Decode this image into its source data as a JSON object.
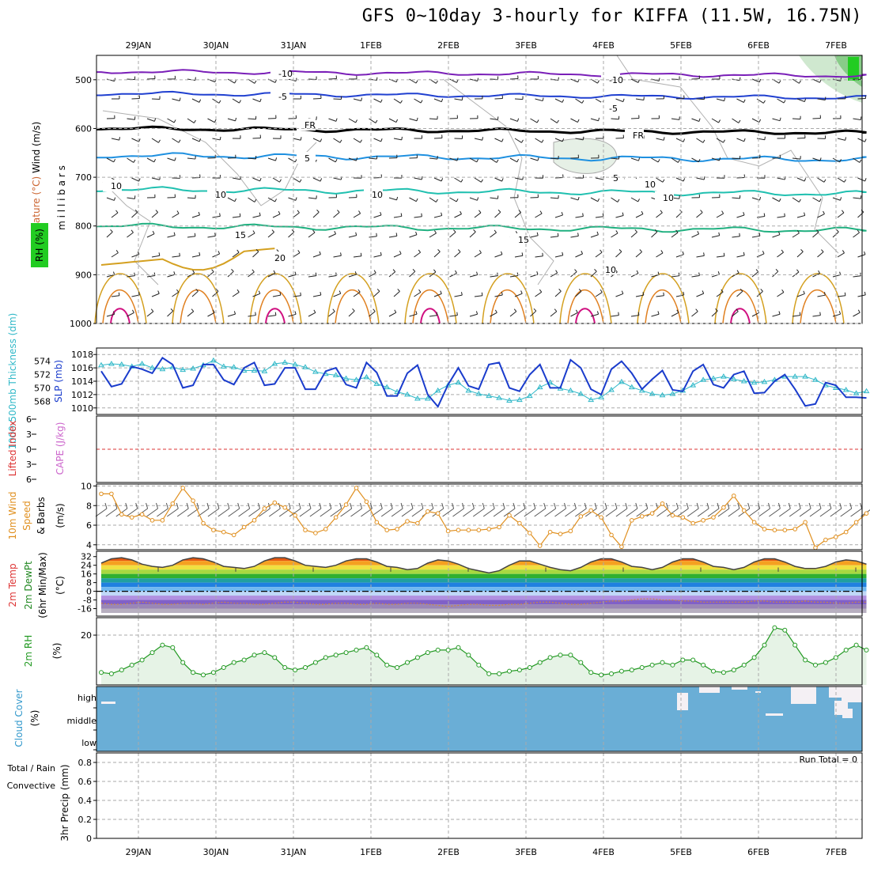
{
  "title": "GFS 0~10day 3-hourly for KIFFA (11.5W, 16.75N)",
  "dates": [
    "29JAN",
    "30JAN",
    "31JAN",
    "1FEB",
    "2FEB",
    "3FEB",
    "4FEB",
    "5FEB",
    "6FEB",
    "7FEB"
  ],
  "colors": {
    "grid": "#aaaaaa",
    "tenC": "#7a1fb8",
    "fiveC": "#2040d0",
    "freeze": "#000000",
    "plus5": "#1e90e0",
    "plus10": "#20c0b0",
    "plus15": "#20b080",
    "plus20": "#d4a020",
    "plus25": "#e08020",
    "plus30": "#d01080",
    "slp": "#1a3ccc",
    "thick": "#30b8c8",
    "wind": "#e09020",
    "rh": "#229922",
    "cloud": "#6aaed6"
  },
  "chart_data": [
    {
      "type": "line",
      "panel": "upper-air",
      "ylabel_parts": [
        "Wind (m/s)",
        "Temperature (°C)"
      ],
      "ylabel2": "m i l l i b a r s",
      "rh_label": "RH (%)",
      "y_ticks": [
        "500",
        "600",
        "700",
        "800",
        "900",
        "1000"
      ],
      "ylim": [
        450,
        1000
      ],
      "contour_labels": [
        "-10",
        "-10",
        "-5",
        "-5",
        "FR",
        "FR",
        "5",
        "5",
        "10",
        "10",
        "10",
        "15",
        "15",
        "20",
        "10",
        "10",
        "10"
      ]
    },
    {
      "type": "line",
      "panel": "pressure-thickness",
      "ylabel_left": "1000-500mb Thickness (dm)",
      "ylabel_right": "SLP (mb)",
      "left_ticks": [
        "574",
        "572",
        "570",
        "568"
      ],
      "right_ticks": [
        "1018",
        "1016",
        "1014",
        "1012",
        "1010"
      ],
      "slp_range": [
        1009.5,
        1018.5
      ],
      "thickness_range": [
        566.5,
        575.5
      ],
      "series": [
        {
          "name": "SLP (mb)",
          "values": [
            1015.5,
            1013.2,
            1013.6,
            1016.2,
            1015.8,
            1015.2,
            1017.5,
            1016.5,
            1013,
            1013.4,
            1016.5,
            1016.5,
            1014.2,
            1013.5,
            1016,
            1016.8,
            1013.4,
            1013.6,
            1016,
            1016,
            1012.8,
            1012.8,
            1015.5,
            1016,
            1013.5,
            1013,
            1016.8,
            1015.3,
            1011.8,
            1011.8,
            1015.2,
            1016.4,
            1012,
            1010.2,
            1013.5,
            1016,
            1013.3,
            1012.8,
            1016.5,
            1016.8,
            1013,
            1012.5,
            1015,
            1016.5,
            1013,
            1013,
            1017.2,
            1016,
            1012.8,
            1012,
            1015.8,
            1017,
            1015.2,
            1012.8,
            1014.3,
            1015.6,
            1012.7,
            1012.5,
            1015.5,
            1016.5,
            1013.5,
            1013,
            1015,
            1015.5,
            1012.2,
            1012.3,
            1014,
            1015,
            1012.8,
            1010.3,
            1010.6,
            1013.8,
            1013.4,
            1011.6,
            1011.6,
            1011.5
          ]
        },
        {
          "name": "1000-500mb Thickness (dm)",
          "values": [
            573.4,
            573.6,
            573.5,
            573.2,
            573.6,
            573,
            572.8,
            573.1,
            572.7,
            572.9,
            573.4,
            574.1,
            573.2,
            573.1,
            572.6,
            572.6,
            572.5,
            573.6,
            573.8,
            573.5,
            573.1,
            572.4,
            572.1,
            571.9,
            571.4,
            571.2,
            571.6,
            570.6,
            570.1,
            569.4,
            569,
            568.4,
            568.4,
            569.6,
            570.4,
            570.8,
            569.6,
            569.1,
            568.8,
            568.5,
            568.1,
            568.2,
            568.8,
            570.1,
            570.8,
            569.9,
            569.6,
            569.1,
            568.2,
            568.6,
            569.7,
            570.9,
            570.1,
            569.6,
            569.1,
            568.9,
            569.1,
            569.6,
            570.4,
            571.2,
            571.4,
            571.7,
            571.3,
            571,
            570.8,
            570.9,
            571.2,
            571.7,
            571.7,
            571.7,
            571.2,
            570.4,
            570,
            569.7,
            569.2,
            569.5
          ]
        }
      ]
    },
    {
      "type": "line",
      "panel": "instability",
      "ylabel_left": "Lifted Index",
      "ylabel_right": "CAPE (J/kg)",
      "y_ticks": [
        "6",
        "3",
        "0",
        "3",
        "6"
      ],
      "ylim": [
        -6,
        6
      ]
    },
    {
      "type": "line",
      "panel": "wind-10m",
      "ylabel_parts": [
        "10m Wind",
        "Speed",
        "& Barbs"
      ],
      "ylabel_unit": "(m/s)",
      "y_ticks": [
        "10",
        "8",
        "6",
        "4"
      ],
      "ylim": [
        3.5,
        10.2
      ],
      "series": [
        {
          "name": "Speed",
          "values": [
            9.2,
            9.2,
            7.1,
            6.8,
            7.1,
            6.5,
            6.5,
            8.2,
            9.8,
            8.5,
            6.2,
            5.5,
            5.3,
            5.0,
            5.8,
            6.5,
            7.7,
            8.3,
            7.8,
            7.0,
            5.5,
            5.2,
            5.6,
            6.8,
            8.1,
            9.8,
            8.4,
            6.3,
            5.5,
            5.6,
            6.4,
            6.2,
            7.4,
            7.2,
            5.4,
            5.5,
            5.5,
            5.5,
            5.6,
            5.8,
            7.0,
            6.2,
            5.2,
            3.9,
            5.3,
            5.1,
            5.4,
            6.9,
            7.5,
            6.8,
            5.0,
            3.8,
            6.5,
            6.9,
            7.2,
            8.2,
            7.0,
            6.8,
            6.2,
            6.5,
            6.8,
            7.8,
            9.0,
            7.5,
            6.3,
            5.6,
            5.5,
            5.5,
            5.6,
            6.3,
            3.7,
            4.5,
            4.8,
            5.3,
            6.3,
            7.2
          ]
        }
      ]
    },
    {
      "type": "area",
      "panel": "temperature-2m",
      "ylabel_parts": [
        "2m Temp",
        "2m DewPt",
        "(6hr Min/Max)"
      ],
      "ylabel_unit": "(°C)",
      "y_ticks": [
        "32",
        "24",
        "16",
        "8",
        "0",
        "-8",
        "-16"
      ],
      "ylim": [
        -20,
        34
      ],
      "series": [
        {
          "name": "2m Temp",
          "values": [
            26,
            30,
            31,
            29,
            25,
            23,
            22,
            24,
            29,
            31,
            30,
            27,
            23,
            22,
            21,
            23,
            28,
            31,
            31,
            28,
            24,
            23,
            22,
            24,
            28,
            30,
            30,
            27,
            23,
            22,
            20,
            21,
            26,
            29,
            28,
            25,
            21,
            19,
            17,
            19,
            24,
            28,
            28,
            25,
            22,
            20,
            19,
            22,
            27,
            30,
            30,
            27,
            23,
            22,
            20,
            22,
            27,
            30,
            30,
            27,
            23,
            22,
            20,
            22,
            27,
            30,
            30,
            27,
            23,
            21,
            21,
            23,
            27,
            29,
            28,
            25
          ]
        },
        {
          "name": "2m DewPt",
          "values": [
            -11,
            -12,
            -12,
            -11,
            -10,
            -11,
            -12,
            -12,
            -11,
            -11,
            -12,
            -11,
            -10,
            -11,
            -11,
            -12,
            -12,
            -11,
            -10,
            -10,
            -11,
            -12,
            -12,
            -11,
            -11,
            -12,
            -12,
            -11,
            -12,
            -12,
            -11,
            -11,
            -12,
            -13,
            -14,
            -13,
            -12,
            -12,
            -13,
            -13,
            -12,
            -12,
            -11,
            -10,
            -10,
            -11,
            -12,
            -12,
            -11,
            -10,
            -9,
            -9,
            -8,
            -7,
            -7,
            -8,
            -8,
            -9,
            -9,
            -10,
            -10,
            -10,
            -10,
            -10,
            -9,
            -9,
            -10,
            -10,
            -10,
            -9,
            -10,
            -10,
            -11,
            -11,
            -10,
            -10
          ]
        }
      ]
    },
    {
      "type": "line",
      "panel": "rh-2m",
      "ylabel": "2m RH",
      "ylabel_unit": "(%)",
      "y_ticks": [
        "20"
      ],
      "ylim": [
        0,
        27
      ],
      "series": [
        {
          "name": "2m RH",
          "values": [
            5,
            4.5,
            6,
            8,
            10,
            13,
            16,
            15,
            9,
            5,
            4,
            5,
            7,
            9,
            10,
            12,
            13,
            11,
            7,
            6,
            7,
            9,
            11,
            12,
            13,
            14,
            15,
            12,
            8,
            7,
            9,
            11,
            13,
            14,
            14,
            15,
            12,
            8,
            4.5,
            4.5,
            5.5,
            6,
            7,
            9,
            11,
            12,
            12,
            9,
            5,
            4,
            4.5,
            5.5,
            6,
            7,
            8,
            9,
            8,
            10,
            10,
            8,
            5.5,
            5,
            6,
            8,
            11,
            16,
            23,
            22,
            16,
            10,
            8,
            9,
            11,
            14,
            16,
            14
          ]
        }
      ]
    },
    {
      "type": "heatmap",
      "panel": "cloud-cover",
      "ylabel": "Cloud Cover",
      "ylabel_unit": "(%)",
      "levels": [
        "high",
        "middle",
        "low"
      ]
    },
    {
      "type": "bar",
      "panel": "precip",
      "ylabel_parts": [
        "3hr Precip (mm)"
      ],
      "legend": [
        "Total / Rain",
        "Convective"
      ],
      "run_total": "Run Total = 0",
      "y_ticks": [
        "0.8",
        "0.6",
        "0.4",
        "0.2",
        "0"
      ],
      "ylim": [
        0,
        0.9
      ],
      "values": []
    }
  ]
}
